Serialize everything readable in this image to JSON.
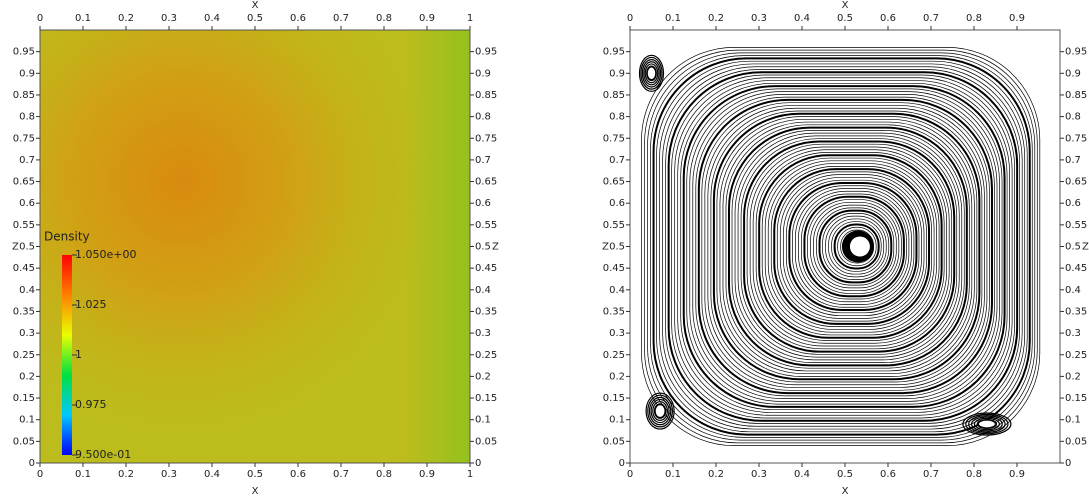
{
  "chart_data": [
    {
      "type": "heatmap",
      "xlabel": "X",
      "ylabel": "Z",
      "xlim": [
        0,
        1
      ],
      "ylim": [
        0,
        1
      ],
      "xticks": [
        0,
        0.1,
        0.2,
        0.3,
        0.4,
        0.5,
        0.6,
        0.7,
        0.8,
        0.9,
        1
      ],
      "yticks": [
        0,
        0.05,
        0.1,
        0.15,
        0.2,
        0.25,
        0.3,
        0.35,
        0.4,
        0.45,
        0.5,
        0.55,
        0.6,
        0.65,
        0.7,
        0.75,
        0.8,
        0.85,
        0.9,
        0.95
      ],
      "colorbar": {
        "title": "Density",
        "lim": [
          0.95,
          1.05
        ],
        "colormap": [
          "#0000ff",
          "#00c8ff",
          "#00e040",
          "#e8ff00",
          "#ff8000",
          "#ff0000"
        ],
        "ticks": [
          {
            "value": 1.05,
            "label": "1.050e+00"
          },
          1.025,
          1,
          0.975,
          {
            "value": 0.95,
            "label": "9.500e-01"
          }
        ]
      }
    },
    {
      "type": "streamlines",
      "xlabel": "X",
      "ylabel": "Z",
      "xlim": [
        0,
        1
      ],
      "ylim": [
        0,
        1
      ],
      "xticks": [
        0,
        0.1,
        0.2,
        0.3,
        0.4,
        0.5,
        0.6,
        0.7,
        0.8,
        0.9
      ],
      "yticks": [
        0,
        0.05,
        0.1,
        0.15,
        0.2,
        0.25,
        0.3,
        0.35,
        0.4,
        0.45,
        0.5,
        0.55,
        0.6,
        0.65,
        0.7,
        0.75,
        0.8,
        0.85,
        0.9,
        0.95
      ]
    }
  ]
}
